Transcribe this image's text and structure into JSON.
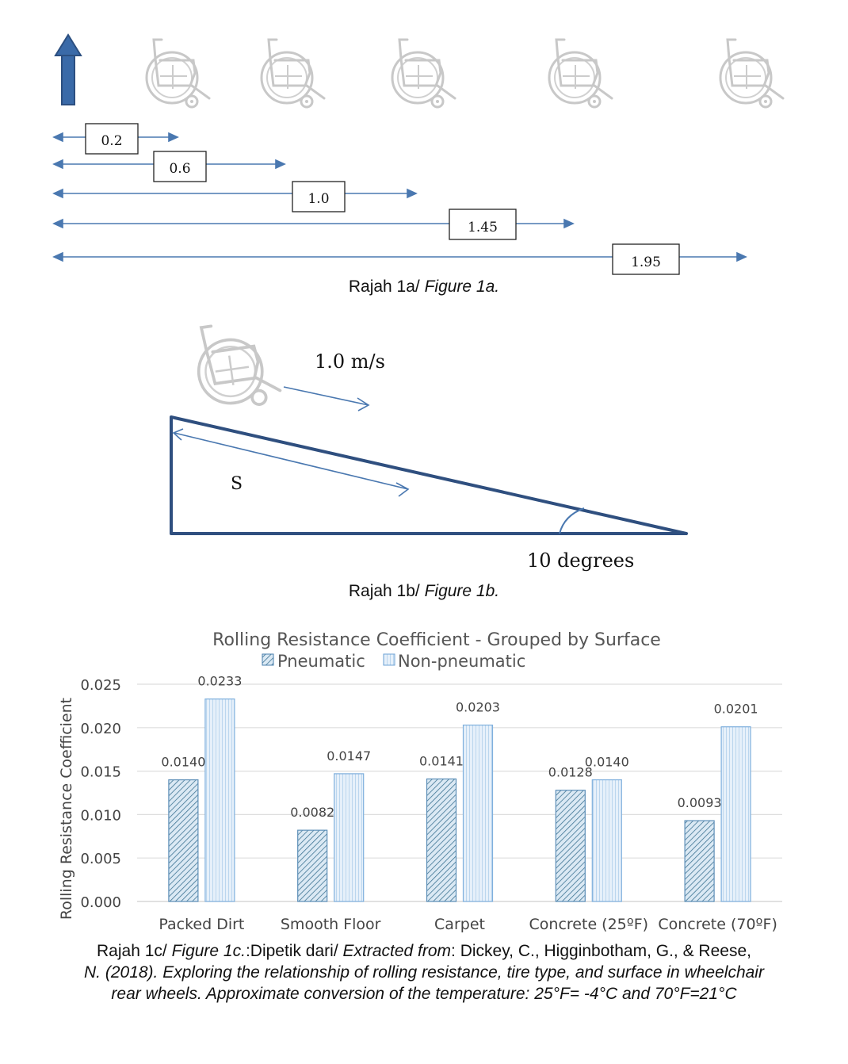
{
  "figure_1a": {
    "caption_plain": "Rajah 1a/ ",
    "caption_italic": "Figure 1a.",
    "distances": [
      "0.2",
      "0.6",
      "1.0",
      "1.45",
      "1.95"
    ],
    "arrow_color": "#4a78b0",
    "icon_names": [
      "up-arrow-icon",
      "wheelchair-icon"
    ]
  },
  "figure_1b": {
    "speed_label": "1.0 m/s",
    "distance_label": "S",
    "angle_label": "10 degrees",
    "caption_plain": "Rajah 1b/ ",
    "caption_italic": "Figure 1b.",
    "ramp_color": "#2f4f7f"
  },
  "figure_1c": {
    "caption_line1_plain_a": "Rajah 1c/ ",
    "caption_line1_italic_a": "Figure 1c.",
    "caption_line1_plain_b": ":Dipetik dari/ ",
    "caption_line1_italic_b": "Extracted from",
    "caption_line1_plain_c": ": Dickey, C., Higginbotham, G., & Reese,",
    "caption_line2": "N. (2018). Exploring the relationship of rolling resistance, tire type, and surface in wheelchair",
    "caption_line3": "rear wheels. Approximate conversion of the temperature: 25°F= -4°C and 70°F=21°C"
  },
  "chart_data": {
    "type": "bar",
    "title": "Rolling Resistance Coefficient - Grouped by Surface",
    "ylabel": "Rolling Resistance Coefficient",
    "xlabel": "",
    "categories": [
      "Packed Dirt",
      "Smooth Floor",
      "Carpet",
      "Concrete (25ºF)",
      "Concrete (70ºF)"
    ],
    "series": [
      {
        "name": "Pneumatic",
        "values": [
          0.014,
          0.0082,
          0.0141,
          0.0128,
          0.0093
        ],
        "labels": [
          "0.0140",
          "0.0082",
          "0.0141",
          "0.0128",
          "0.0093"
        ]
      },
      {
        "name": "Non-pneumatic",
        "values": [
          0.0233,
          0.0147,
          0.0203,
          0.014,
          0.0201
        ],
        "labels": [
          "0.0233",
          "0.0147",
          "0.0203",
          "0.0140",
          "0.0201"
        ]
      }
    ],
    "yticks": [
      "0.000",
      "0.005",
      "0.010",
      "0.015",
      "0.020",
      "0.025"
    ],
    "ylim": [
      0,
      0.025
    ],
    "grid": true,
    "legend": "top",
    "colors": {
      "pneumatic_fill": "#d6e6f3",
      "pneumatic_hatch": "#2f6f8f",
      "nonpneumatic_fill": "#e4eff9",
      "nonpneumatic_hatch": "#9cc3e6",
      "bar_edge": "#6fa3d6"
    }
  }
}
